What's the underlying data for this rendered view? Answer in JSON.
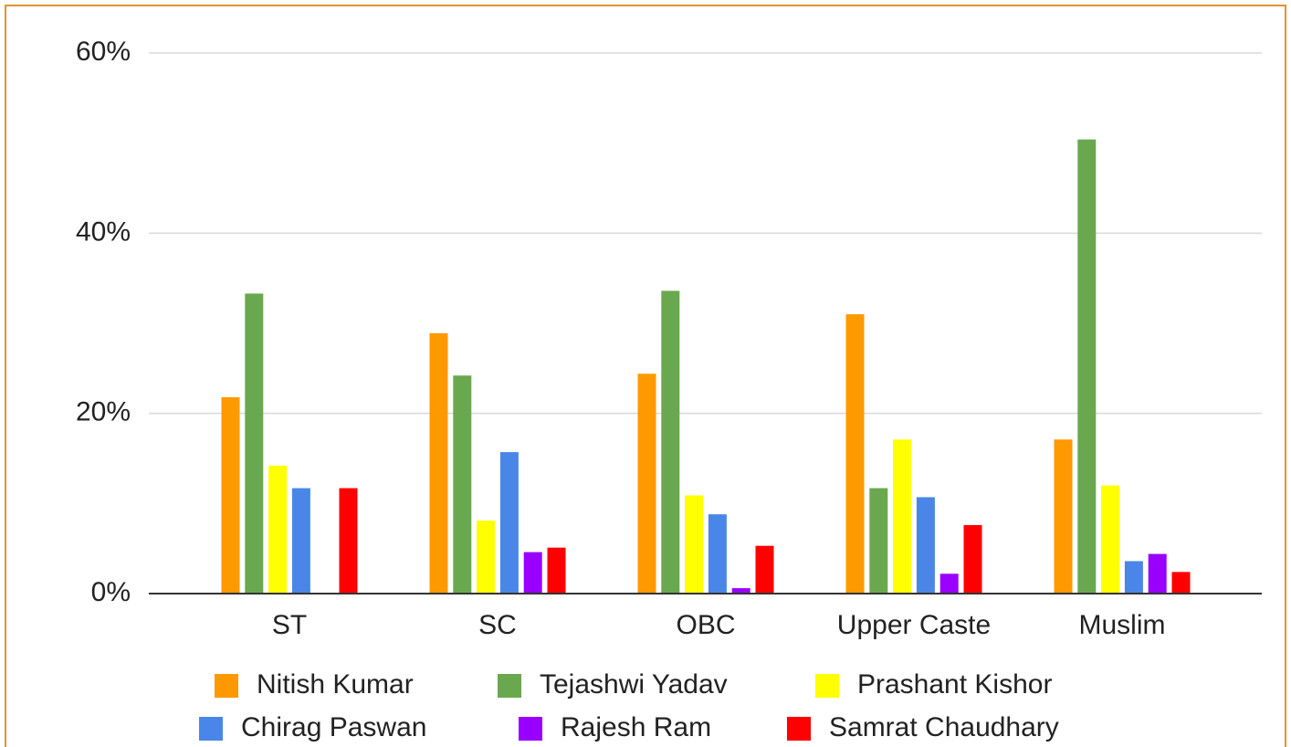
{
  "chart_data": {
    "type": "bar",
    "categories": [
      "ST",
      "SC",
      "OBC",
      "Upper Caste",
      "Muslim"
    ],
    "series": [
      {
        "name": "Nitish Kumar",
        "color": "#ff9900",
        "values": [
          21.8,
          28.9,
          24.4,
          31.0,
          17.1
        ]
      },
      {
        "name": "Tejashwi Yadav",
        "color": "#6aa84f",
        "values": [
          33.3,
          24.2,
          33.6,
          11.7,
          50.4
        ]
      },
      {
        "name": "Prashant Kishor",
        "color": "#ffff00",
        "values": [
          14.2,
          8.1,
          10.9,
          17.1,
          12.0
        ]
      },
      {
        "name": "Chirag Paswan",
        "color": "#4a86e8",
        "values": [
          11.7,
          15.7,
          8.8,
          10.7,
          3.6
        ]
      },
      {
        "name": "Rajesh Ram",
        "color": "#9900ff",
        "values": [
          0,
          4.6,
          0.6,
          2.2,
          4.4
        ]
      },
      {
        "name": "Samrat Chaudhary",
        "color": "#ff0000",
        "values": [
          11.7,
          5.1,
          5.3,
          7.6,
          2.4
        ]
      }
    ],
    "ylim": [
      0,
      60
    ],
    "yticks": [
      {
        "value": 0,
        "label": "0%"
      },
      {
        "value": 20,
        "label": "20%"
      },
      {
        "value": 40,
        "label": "40%"
      },
      {
        "value": 60,
        "label": "60%"
      }
    ],
    "grid": true,
    "legend": "bottom"
  }
}
